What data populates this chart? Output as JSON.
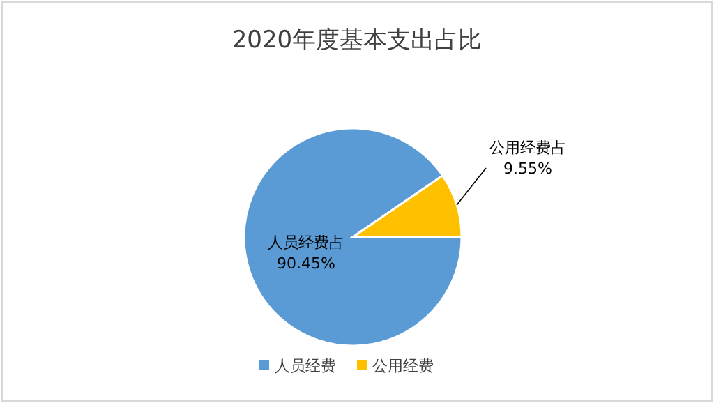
{
  "chart_data": {
    "type": "pie",
    "title": "2020年度基本支出占比",
    "categories": [
      "人员经费",
      "公用经费"
    ],
    "values": [
      90.45,
      9.55
    ],
    "colors": [
      "#5b9bd5",
      "#ffc000"
    ],
    "value_labels": [
      "人员经费占\n90.45%",
      "公用经费占\n9.55%"
    ],
    "legend": "bottom"
  }
}
